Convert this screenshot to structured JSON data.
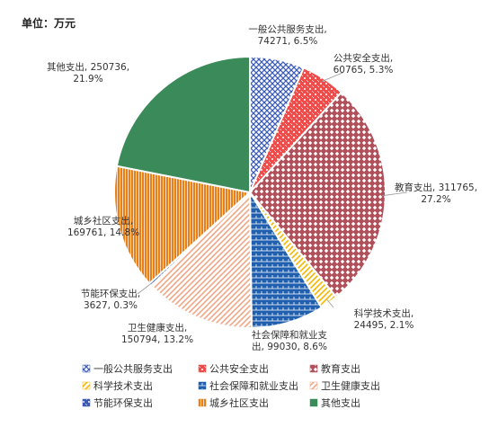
{
  "unit_label": "单位：万元",
  "chart_data": {
    "type": "pie",
    "start_angle_deg": 0,
    "direction": "clockwise",
    "slices": [
      {
        "name": "一般公共服务支出",
        "value": 74271,
        "percent": "6.5%",
        "color": "#3b5bb5",
        "pattern": "check"
      },
      {
        "name": "公共安全支出",
        "value": 60765,
        "percent": "5.3%",
        "color": "#ef4c4c",
        "pattern": "dots"
      },
      {
        "name": "教育支出",
        "value": 311765,
        "percent": "27.2%",
        "color": "#b0505a",
        "pattern": "diamond"
      },
      {
        "name": "科学技术支出",
        "value": 24495,
        "percent": "2.1%",
        "color": "#f5b800",
        "pattern": "hatch"
      },
      {
        "name": "社会保障和就业支出",
        "value": 99030,
        "percent": "8.6%",
        "color": "#1f5fae",
        "pattern": "brick"
      },
      {
        "name": "卫生健康支出",
        "value": 150794,
        "percent": "13.2%",
        "color": "#f0a888",
        "pattern": "hatch"
      },
      {
        "name": "节能环保支出",
        "value": 3627,
        "percent": "0.3%",
        "color": "#3b5bb5",
        "pattern": "dots"
      },
      {
        "name": "城乡社区支出",
        "value": 169761,
        "percent": "14.8%",
        "color": "#e8801a",
        "pattern": "vlines"
      },
      {
        "name": "其他支出",
        "value": 250736,
        "percent": "21.9%",
        "color": "#3a8a5a",
        "pattern": "solid"
      }
    ],
    "data_labels": [
      {
        "lines": [
          "一般公共服务支出,",
          "74271, 6.5%"
        ]
      },
      {
        "lines": [
          "公共安全支出,",
          "60765, 5.3%"
        ]
      },
      {
        "lines": [
          "教育支出, 311765,",
          "27.2%"
        ]
      },
      {
        "lines": [
          "科学技术支出,",
          "24495, 2.1%"
        ]
      },
      {
        "lines": [
          "社会保障和就业支",
          "出, 99030, 8.6%"
        ]
      },
      {
        "lines": [
          "卫生健康支出,",
          "150794, 13.2%"
        ]
      },
      {
        "lines": [
          "节能环保支出,",
          "3627, 0.3%"
        ]
      },
      {
        "lines": [
          "城乡社区支出,",
          "169761, 14.8%"
        ]
      },
      {
        "lines": [
          "其他支出, 250736,",
          "21.9%"
        ]
      }
    ],
    "legend_position": "bottom"
  }
}
